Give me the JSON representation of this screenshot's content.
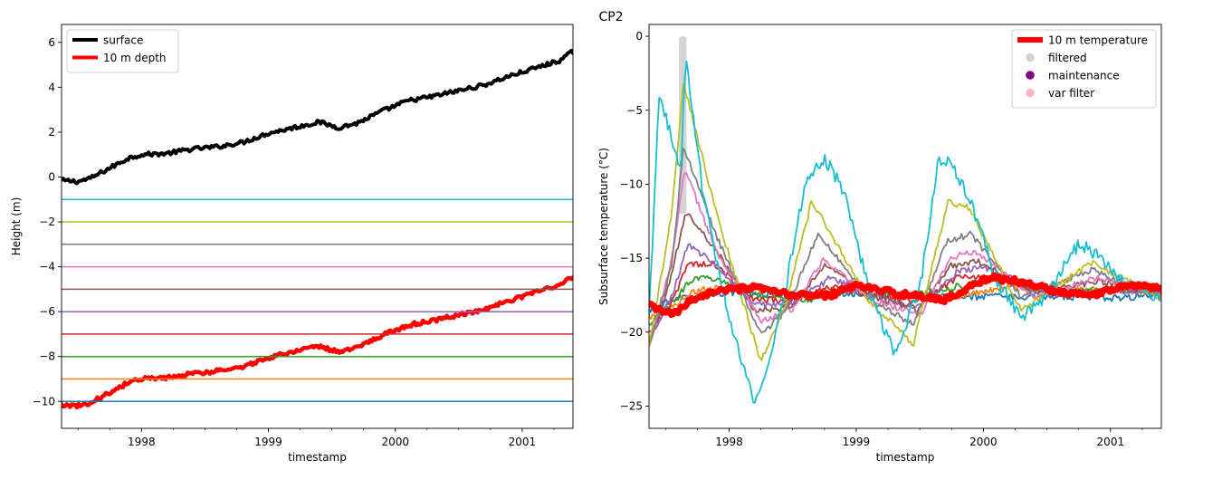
{
  "figure": {
    "suptitle": "CP2"
  },
  "colors": {
    "surface": "#000000",
    "depth10": "#ff0000",
    "filtered": "#d3d3d3",
    "maintenance": "#800080",
    "var_filter": "#ffb6c1",
    "depth_lines": [
      "#1f77b4",
      "#ff7f0e",
      "#2ca02c",
      "#d62728",
      "#9467bd",
      "#8c564b",
      "#e377c2",
      "#7f7f7f",
      "#bcbd22",
      "#17becf"
    ]
  },
  "chart_data": [
    {
      "type": "line",
      "xlabel": "timestamp",
      "ylabel": "Height (m)",
      "xlim": [
        1997.37,
        2001.4
      ],
      "ylim": [
        -11.2,
        6.8
      ],
      "x_ticks": [
        1998,
        1999,
        2000,
        2001
      ],
      "y_ticks": [
        -10,
        -8,
        -6,
        -4,
        -2,
        0,
        2,
        4,
        6
      ],
      "y_tick_labels": [
        "−10",
        "−8",
        "−6",
        "−4",
        "−2",
        "0",
        "2",
        "4",
        "6"
      ],
      "legend": {
        "position": "top-left",
        "entries": [
          {
            "label": "surface",
            "color": "#000000"
          },
          {
            "label": "10 m depth",
            "color": "#ff0000"
          }
        ]
      },
      "series": [
        {
          "name": "surface",
          "x": [
            1997.37,
            1997.5,
            1997.6,
            1997.75,
            1997.9,
            1998.0,
            1998.2,
            1998.4,
            1998.6,
            1998.8,
            1999.0,
            1999.2,
            1999.4,
            1999.55,
            1999.7,
            1999.9,
            2000.1,
            2000.3,
            2000.5,
            2000.7,
            2000.9,
            2001.1,
            2001.3,
            2001.4
          ],
          "y": [
            -0.15,
            -0.2,
            -0.05,
            0.4,
            0.85,
            1.0,
            1.05,
            1.25,
            1.35,
            1.55,
            1.95,
            2.2,
            2.45,
            2.2,
            2.4,
            2.95,
            3.4,
            3.6,
            3.85,
            4.1,
            4.5,
            4.85,
            5.2,
            5.6
          ]
        },
        {
          "name": "10 m depth",
          "x": [
            1997.37,
            1997.5,
            1997.6,
            1997.75,
            1997.9,
            1998.0,
            1998.2,
            1998.4,
            1998.6,
            1998.8,
            1999.0,
            1999.2,
            1999.4,
            1999.55,
            1999.7,
            1999.9,
            2000.1,
            2000.3,
            2000.5,
            2000.7,
            2000.9,
            2001.1,
            2001.3,
            2001.4
          ],
          "y": [
            -10.15,
            -10.2,
            -10.05,
            -9.6,
            -9.15,
            -9.0,
            -8.95,
            -8.75,
            -8.65,
            -8.45,
            -8.05,
            -7.8,
            -7.55,
            -7.8,
            -7.6,
            -7.05,
            -6.6,
            -6.4,
            -6.15,
            -5.9,
            -5.5,
            -5.15,
            -4.8,
            -4.4
          ]
        },
        {
          "name": "",
          "x": [
            1997.37,
            2001.4
          ],
          "y": [
            -1,
            -1
          ]
        },
        {
          "name": "",
          "x": [
            1997.37,
            2001.4
          ],
          "y": [
            -2,
            -2
          ]
        },
        {
          "name": "",
          "x": [
            1997.37,
            2001.4
          ],
          "y": [
            -3,
            -3
          ]
        },
        {
          "name": "",
          "x": [
            1997.37,
            2001.4
          ],
          "y": [
            -4,
            -4
          ]
        },
        {
          "name": "",
          "x": [
            1997.37,
            2001.4
          ],
          "y": [
            -5,
            -5
          ]
        },
        {
          "name": "",
          "x": [
            1997.37,
            2001.4
          ],
          "y": [
            -6,
            -6
          ]
        },
        {
          "name": "",
          "x": [
            1997.37,
            2001.4
          ],
          "y": [
            -7,
            -7
          ]
        },
        {
          "name": "",
          "x": [
            1997.37,
            2001.4
          ],
          "y": [
            -8,
            -8
          ]
        },
        {
          "name": "",
          "x": [
            1997.37,
            2001.4
          ],
          "y": [
            -9,
            -9
          ]
        },
        {
          "name": "",
          "x": [
            1997.37,
            2001.4
          ],
          "y": [
            -10,
            -10
          ]
        }
      ]
    },
    {
      "type": "line",
      "xlabel": "timestamp",
      "ylabel": "Subsurface temperature (°C)",
      "xlim": [
        1997.37,
        2001.4
      ],
      "ylim": [
        -26.5,
        0.8
      ],
      "x_ticks": [
        1998,
        1999,
        2000,
        2001
      ],
      "y_ticks": [
        -25,
        -20,
        -15,
        -10,
        -5,
        0
      ],
      "y_tick_labels": [
        "−25",
        "−20",
        "−15",
        "−10",
        "−5",
        "0"
      ],
      "legend": {
        "position": "top-right",
        "entries": [
          {
            "label": "10 m temperature",
            "color": "#ff0000",
            "kind": "line"
          },
          {
            "label": "filtered",
            "color": "#d3d3d3",
            "kind": "marker"
          },
          {
            "label": "maintenance",
            "color": "#800080",
            "kind": "marker"
          },
          {
            "label": "var filter",
            "color": "#ffb6c1",
            "kind": "marker"
          }
        ]
      },
      "filtered_span": {
        "x": [
          1997.62,
          1997.65
        ],
        "y": [
          -12,
          0
        ]
      },
      "series": [
        {
          "name": "",
          "x": [
            1997.37,
            1997.6,
            1997.8,
            1998.0,
            1998.5,
            1999.0,
            1999.5,
            2000.0,
            2000.5,
            2001.0,
            2001.4
          ],
          "y": [
            -18.5,
            -17.6,
            -17.6,
            -17.3,
            -17.5,
            -17.4,
            -17.6,
            -17.6,
            -17.6,
            -17.7,
            -17.5
          ]
        },
        {
          "name": "",
          "x": [
            1997.37,
            1997.55,
            1997.7,
            1997.9,
            1998.2,
            1998.6,
            1999.0,
            1999.5,
            1999.8,
            2000.2,
            2000.5,
            2001.0,
            2001.4
          ],
          "y": [
            -19,
            -18.3,
            -17.3,
            -17,
            -17.1,
            -17.6,
            -17.0,
            -17.6,
            -17.6,
            -16.9,
            -17.2,
            -17.1,
            -17.3
          ]
        },
        {
          "name": "",
          "x": [
            1997.37,
            1997.55,
            1997.7,
            1997.9,
            1998.2,
            1998.6,
            1999.0,
            1999.4,
            1999.8,
            2000.1,
            2000.5,
            2001.0,
            2001.4
          ],
          "y": [
            -19.5,
            -18,
            -16.5,
            -16.3,
            -17.5,
            -17.9,
            -16.8,
            -17.6,
            -16.9,
            -16.4,
            -17.3,
            -17.2,
            -17.2
          ]
        },
        {
          "name": "",
          "x": [
            1997.37,
            1997.55,
            1997.68,
            1997.9,
            1998.2,
            1998.5,
            1998.8,
            1999.2,
            1999.5,
            1999.8,
            2000.1,
            2000.5,
            2001.0,
            2001.4
          ],
          "y": [
            -20,
            -18,
            -15.3,
            -15.5,
            -17.8,
            -17.9,
            -16.9,
            -17.6,
            -17.9,
            -16.3,
            -16.4,
            -17.4,
            -17.1,
            -17.3
          ]
        },
        {
          "name": "",
          "x": [
            1997.37,
            1997.55,
            1997.68,
            1997.9,
            1998.2,
            1998.5,
            1998.8,
            1999.2,
            1999.5,
            1999.8,
            2000.0,
            2000.5,
            2001.0,
            2001.4
          ],
          "y": [
            -20.5,
            -17.5,
            -14,
            -15.5,
            -18.2,
            -18.1,
            -16.3,
            -17.8,
            -18.3,
            -15.9,
            -15.6,
            -17.4,
            -17.2,
            -17.3
          ]
        },
        {
          "name": "",
          "x": [
            1997.37,
            1997.55,
            1997.66,
            1997.9,
            1998.2,
            1998.5,
            1998.75,
            1999.1,
            1999.5,
            1999.75,
            1999.95,
            2000.4,
            2000.9,
            2001.4
          ],
          "y": [
            -21,
            -16,
            -11.8,
            -14.5,
            -18.5,
            -18.3,
            -15.5,
            -17.5,
            -18.5,
            -15.5,
            -15.2,
            -17.3,
            -16.6,
            -17.4
          ]
        },
        {
          "name": "",
          "x": [
            1997.37,
            1997.55,
            1997.65,
            1997.9,
            1998.25,
            1998.5,
            1998.75,
            1999.1,
            1999.5,
            1999.75,
            1999.95,
            2000.4,
            2000.9,
            2001.4
          ],
          "y": [
            -21,
            -15,
            -9,
            -14.5,
            -19.2,
            -18.4,
            -15,
            -17.7,
            -18.9,
            -14.9,
            -14.6,
            -17.6,
            -16.3,
            -17.5
          ]
        },
        {
          "name": "",
          "x": [
            1997.37,
            1997.55,
            1997.64,
            1997.9,
            1998.25,
            1998.45,
            1998.7,
            1999.1,
            1999.45,
            1999.72,
            1999.9,
            2000.3,
            2000.85,
            2001.4
          ],
          "y": [
            -21,
            -15.5,
            -7.5,
            -13.5,
            -20.2,
            -18.5,
            -13.3,
            -17.8,
            -19.5,
            -13.8,
            -13.4,
            -17.6,
            -15.8,
            -17.6
          ]
        },
        {
          "name": "",
          "x": [
            1997.37,
            1997.55,
            1997.64,
            1997.9,
            1998.25,
            1998.45,
            1998.65,
            1999.1,
            1999.45,
            1999.72,
            1999.88,
            2000.3,
            2000.85,
            2001.4
          ],
          "y": [
            -21,
            -12,
            -3,
            -12,
            -22,
            -18,
            -11.1,
            -17.9,
            -20.8,
            -11.2,
            -11.5,
            -18.5,
            -15.3,
            -17.7
          ]
        },
        {
          "name": "",
          "x": [
            1997.37,
            1997.45,
            1997.55,
            1997.62,
            1997.66,
            1997.8,
            1998.0,
            1998.2,
            1998.4,
            1998.6,
            1998.75,
            1998.9,
            1999.1,
            1999.3,
            1999.5,
            1999.65,
            1999.75,
            1999.9,
            2000.1,
            2000.3,
            2000.5,
            2000.75,
            2000.9,
            2001.1,
            2001.4
          ],
          "y": [
            -19,
            -4,
            -7,
            -9,
            -1.5,
            -11,
            -19,
            -25,
            -19,
            -10,
            -8.2,
            -10.5,
            -17,
            -21.5,
            -17,
            -8.3,
            -8.5,
            -11.2,
            -16.4,
            -19,
            -17.5,
            -14,
            -14.8,
            -16.5,
            -17.8
          ]
        },
        {
          "name": "10 m temperature",
          "x": [
            1997.37,
            1997.55,
            1997.62,
            1997.7,
            1997.9,
            1998.2,
            1998.5,
            1998.8,
            1999.0,
            1999.2,
            1999.5,
            1999.7,
            1999.9,
            2000.05,
            2000.3,
            2000.6,
            2000.9,
            2001.1,
            2001.4
          ],
          "y": [
            -18.2,
            -18.8,
            -18.5,
            -17.8,
            -17.2,
            -17.0,
            -17.5,
            -17.5,
            -16.8,
            -17.2,
            -17.6,
            -17.8,
            -16.9,
            -16.3,
            -16.6,
            -17.3,
            -17.4,
            -16.8,
            -17.0
          ]
        }
      ]
    }
  ]
}
